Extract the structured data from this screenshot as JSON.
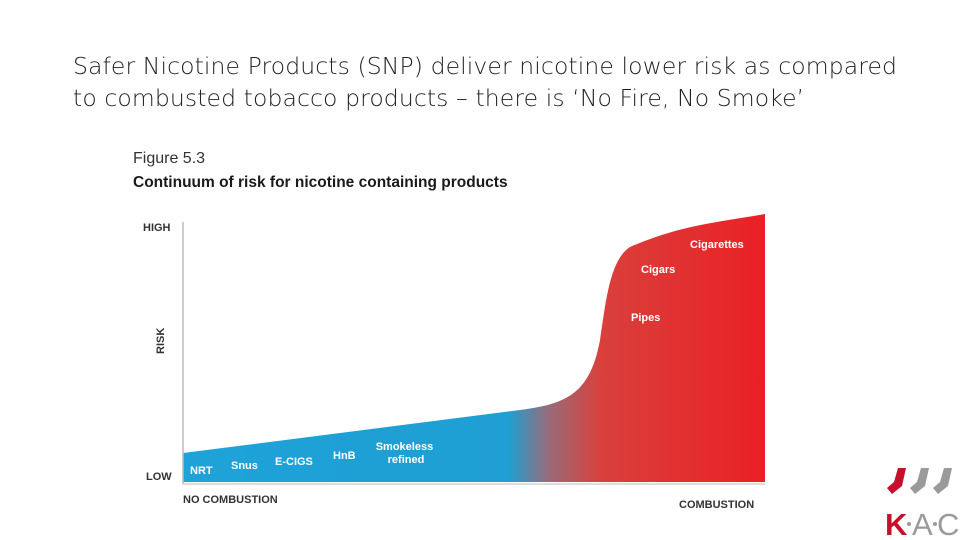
{
  "slide": {
    "title": "Safer Nicotine Products (SNP) deliver nicotine lower risk as compared to combusted tobacco products – there is ‘No Fire, No Smoke’"
  },
  "figure": {
    "label": "Figure 5.3",
    "title": "Continuum of risk for nicotine containing products"
  },
  "chart_data": {
    "type": "area",
    "y_axis": {
      "label": "RISK",
      "high_label": "HIGH",
      "low_label": "LOW"
    },
    "x_axis": {
      "start_label": "NO COMBUSTION",
      "end_label": "COMBUSTION"
    },
    "colors": {
      "low_risk": "#21a3d6",
      "high_risk": "#e82127",
      "axis": "#bbbbbb"
    },
    "products": [
      "NRT",
      "Snus",
      "E-CIGS",
      "HnB",
      "Smokeless refined",
      "Pipes",
      "Cigars",
      "Cigarettes"
    ]
  },
  "logo": {
    "text": "KAC",
    "colors": {
      "stripe_dark": "#c8102e",
      "stripe_grey": "#9a9a9a"
    }
  }
}
